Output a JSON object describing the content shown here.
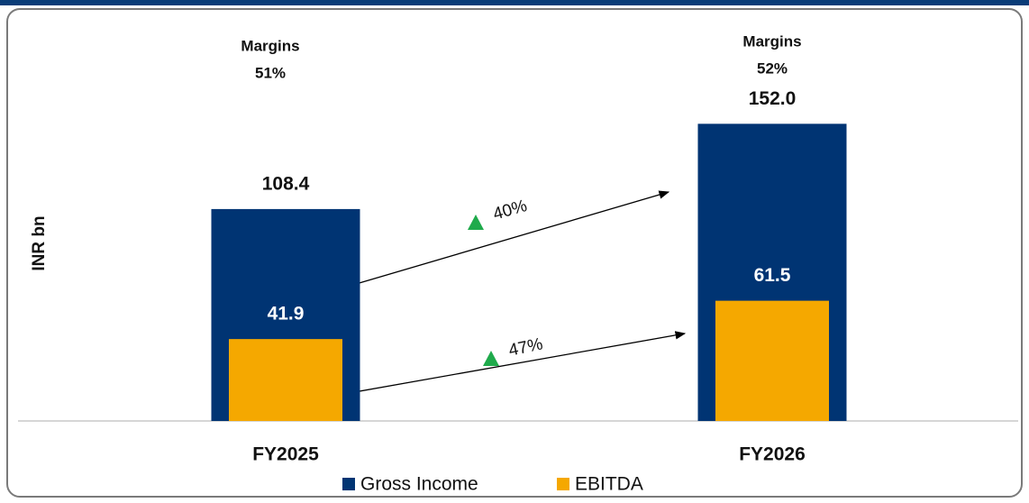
{
  "chart_data": {
    "type": "bar",
    "y_label": "INR bn",
    "categories": [
      "FY2025",
      "FY2026"
    ],
    "series": [
      {
        "name": "Gross Income",
        "color": "#003473",
        "values": [
          108.4,
          152.0
        ],
        "value_labels": [
          "108.4",
          "152.0"
        ]
      },
      {
        "name": "EBITDA",
        "color": "#f5a800",
        "values": [
          41.9,
          61.5
        ],
        "value_labels": [
          "41.9",
          "61.5"
        ]
      }
    ],
    "ylim": [
      0,
      160
    ],
    "margins": {
      "label": "Margins",
      "values": [
        51,
        52
      ],
      "value_labels": [
        "51%",
        "52%"
      ]
    },
    "growth": {
      "color": "#1faa4b",
      "values": [
        40,
        47
      ],
      "value_labels": [
        "40%",
        "47%"
      ]
    }
  }
}
